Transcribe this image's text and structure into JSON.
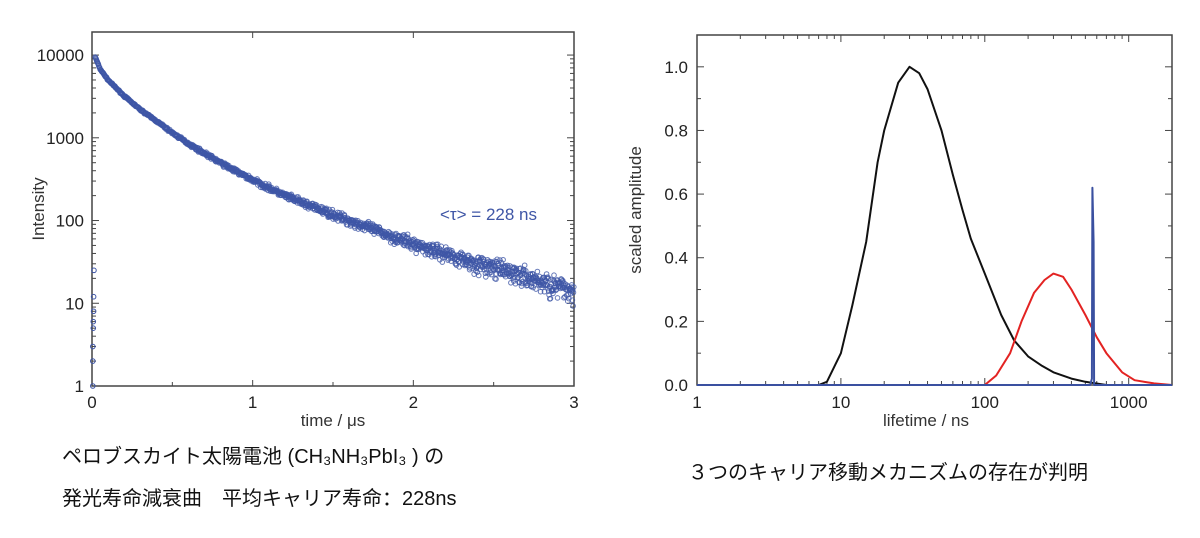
{
  "chart_data": [
    {
      "type": "scatter",
      "title": "",
      "xlabel": "time / μs",
      "ylabel": "Intensity",
      "xlim": [
        0,
        3
      ],
      "ylim": [
        1,
        19000
      ],
      "yscale": "log",
      "xticks": [
        "0",
        "1",
        "2",
        "3"
      ],
      "yticks": [
        "1",
        "10",
        "100",
        "1000",
        "10000"
      ],
      "color": "#3f56a6",
      "annotation": "<τ> = 228 ns",
      "decay_curve": {
        "t": [
          0.02,
          0.05,
          0.1,
          0.2,
          0.3,
          0.4,
          0.5,
          0.6,
          0.7,
          0.8,
          0.9,
          1.0,
          1.2,
          1.4,
          1.6,
          1.8,
          2.0,
          2.2,
          2.4,
          2.6,
          2.8,
          3.0
        ],
        "intensity": [
          9500,
          6800,
          5000,
          3200,
          2200,
          1600,
          1150,
          850,
          650,
          500,
          390,
          310,
          200,
          140,
          100,
          72,
          52,
          40,
          30,
          24,
          18,
          14
        ]
      },
      "rise_points": {
        "t": [
          0.005,
          0.005,
          0.005,
          0.008,
          0.008,
          0.01,
          0.01,
          0.012
        ],
        "intensity": [
          1,
          2,
          3,
          5,
          6,
          8,
          12,
          25
        ]
      }
    },
    {
      "type": "line",
      "title": "",
      "xlabel": "lifetime / ns",
      "ylabel": "scaled amplitude",
      "xlim": [
        1,
        2000
      ],
      "xscale": "log",
      "ylim": [
        0,
        1.1
      ],
      "xticks": [
        "1",
        "10",
        "100",
        "1000"
      ],
      "yticks": [
        "0.0",
        "0.2",
        "0.4",
        "0.6",
        "0.8",
        "1.0"
      ],
      "series": [
        {
          "name": "black",
          "color": "#111111",
          "x": [
            1,
            7,
            8,
            10,
            12,
            15,
            18,
            20,
            25,
            30,
            35,
            40,
            50,
            60,
            70,
            80,
            100,
            130,
            160,
            200,
            250,
            300,
            400,
            500,
            700
          ],
          "y": [
            0,
            0,
            0.01,
            0.1,
            0.25,
            0.45,
            0.7,
            0.8,
            0.95,
            1.0,
            0.98,
            0.93,
            0.8,
            0.66,
            0.55,
            0.46,
            0.35,
            0.22,
            0.14,
            0.09,
            0.06,
            0.04,
            0.02,
            0.01,
            0
          ]
        },
        {
          "name": "red",
          "color": "#e32322",
          "x": [
            100,
            120,
            150,
            180,
            220,
            260,
            300,
            350,
            400,
            500,
            600,
            700,
            900,
            1100,
            1500,
            2000
          ],
          "y": [
            0,
            0.03,
            0.1,
            0.2,
            0.29,
            0.33,
            0.35,
            0.34,
            0.3,
            0.22,
            0.15,
            0.1,
            0.04,
            0.015,
            0.005,
            0
          ]
        },
        {
          "name": "blue",
          "color": "#3a50a0",
          "x": [
            1,
            540,
            555,
            560,
            570,
            575,
            2000
          ],
          "y": [
            0,
            0,
            0.02,
            0.62,
            0.45,
            0,
            0
          ]
        }
      ]
    }
  ],
  "captions": {
    "left_line1": "ペロブスカイト太陽電池 (CH₃NH₃PbI₃ ) の",
    "left_line2": "発光寿命減衰曲　平均キャリア寿命：228ns",
    "right": "３つのキャリア移動メカニズムの存在が判明"
  }
}
